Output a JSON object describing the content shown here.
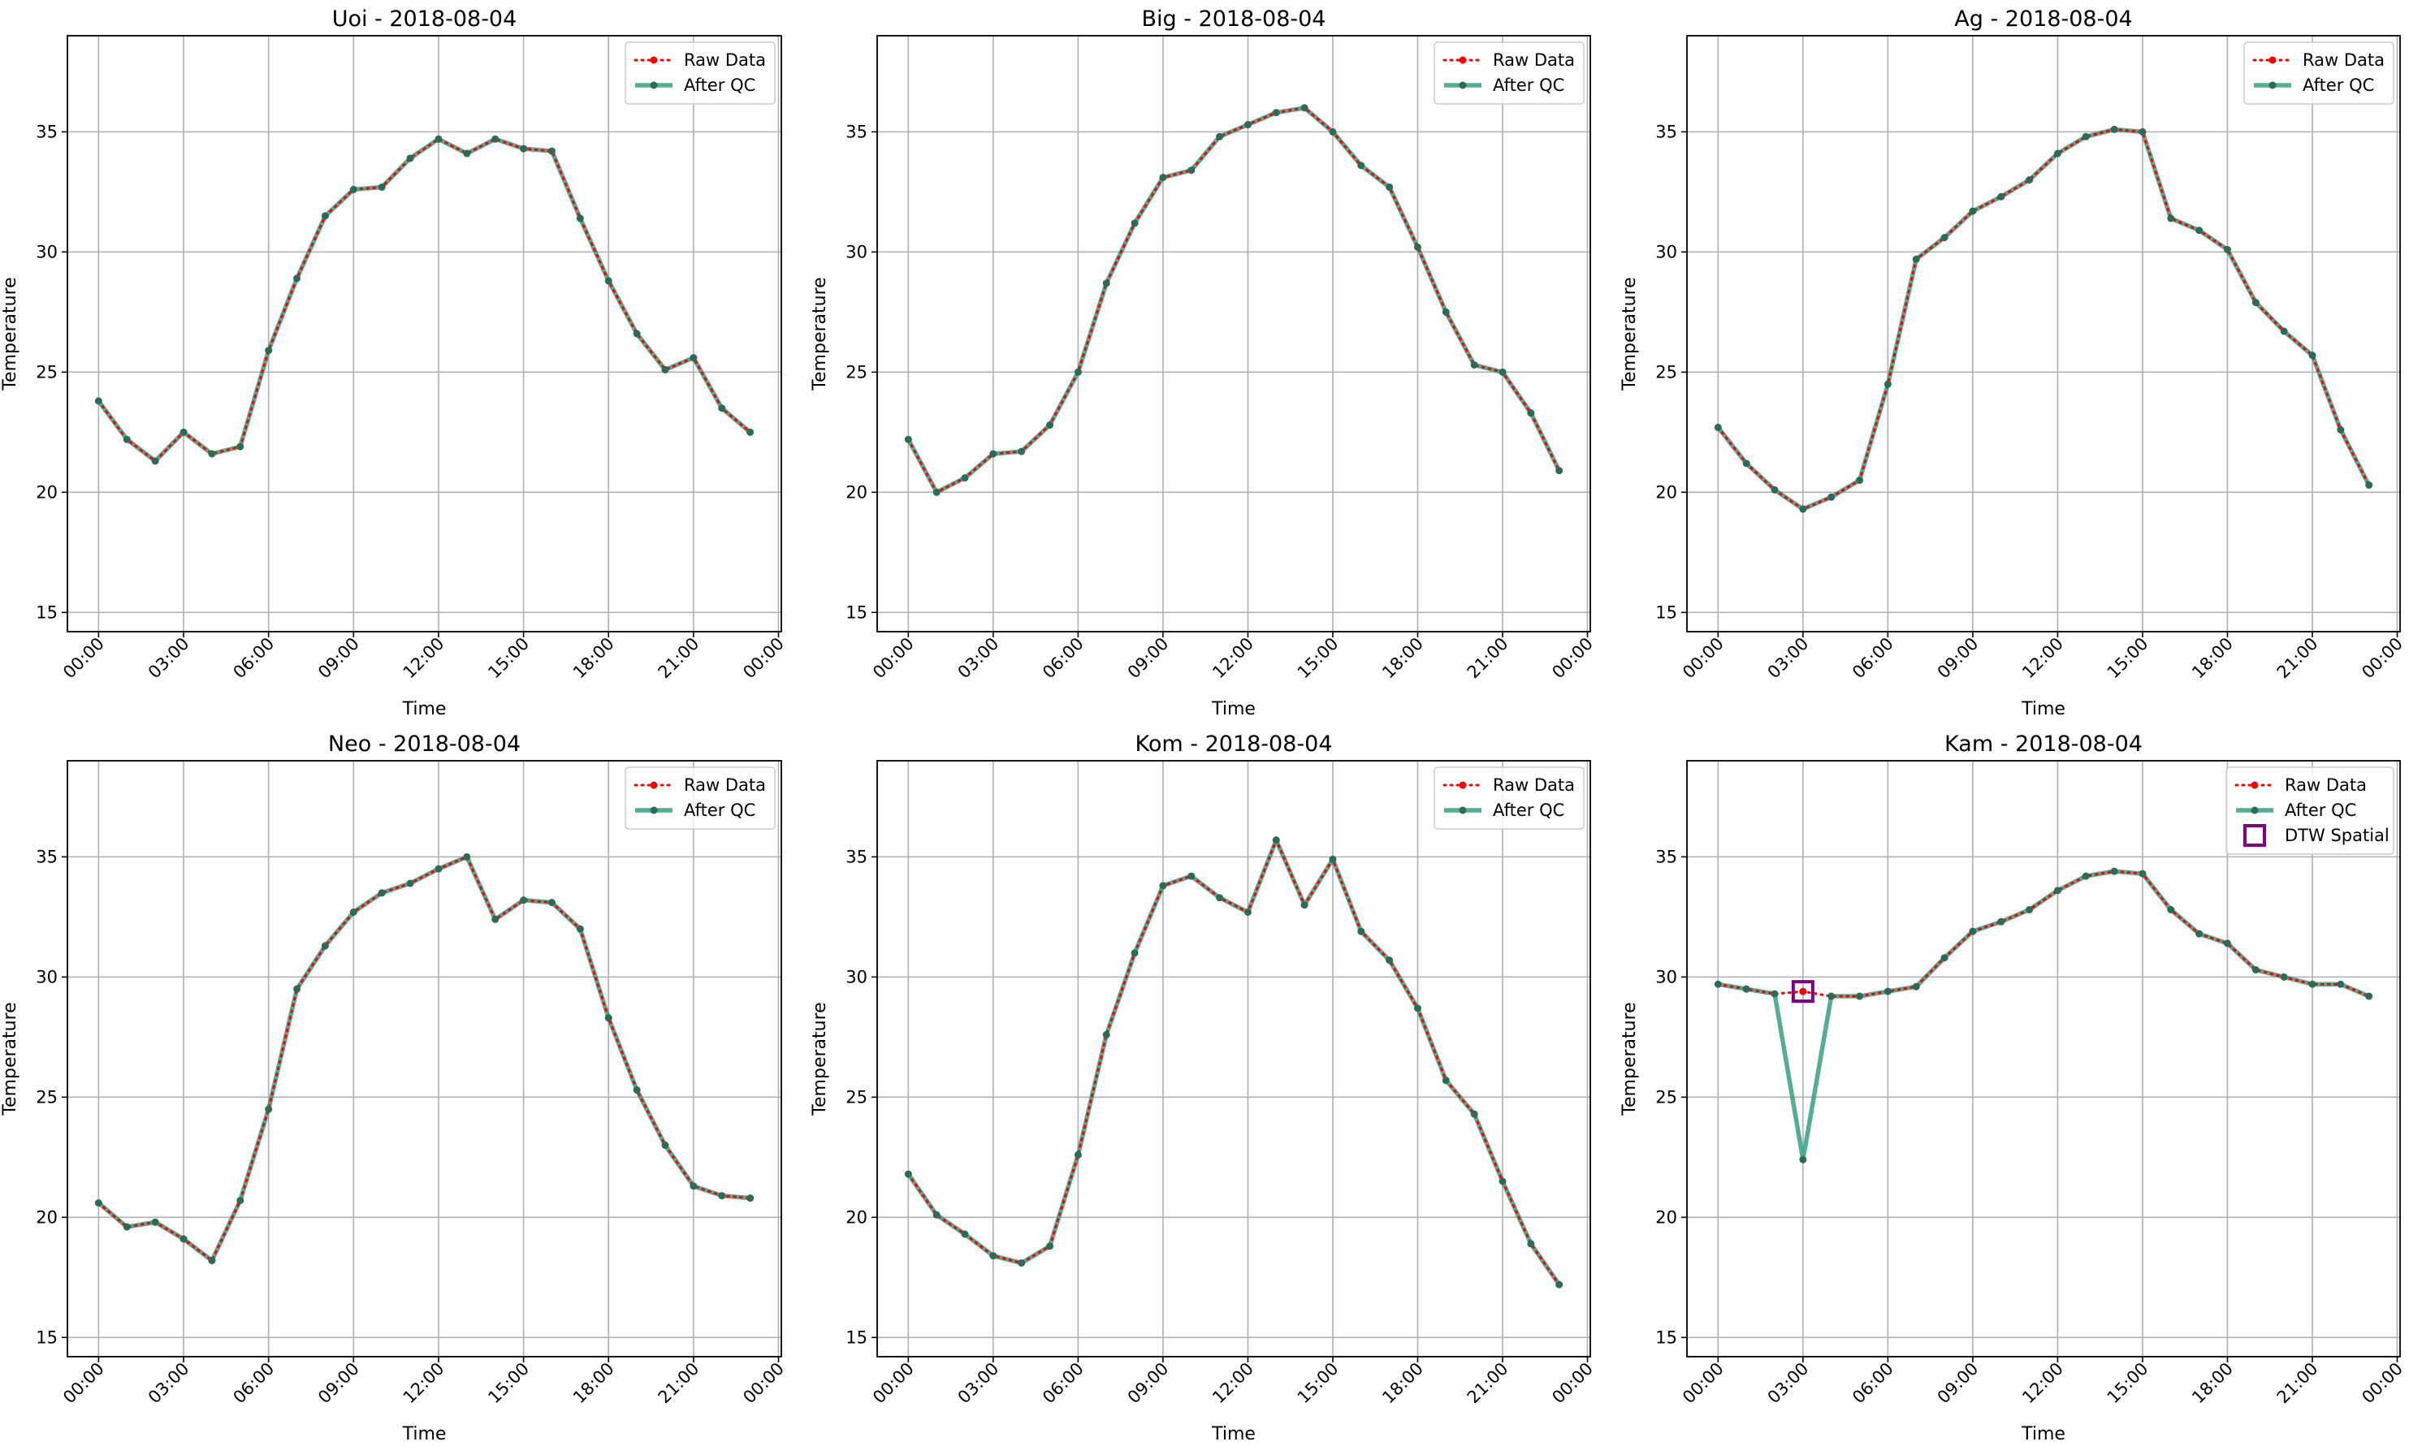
{
  "figure": {
    "background": "#ffffff",
    "colors": {
      "raw": "#ff0000",
      "after_qc": "#2e9c7f",
      "marker": "#2d6b56",
      "dtw": "#800080",
      "grid": "#b0b0b0"
    }
  },
  "chart_data": [
    {
      "type": "line",
      "title": "Uoi - 2018-08-04",
      "xlabel": "Time",
      "ylabel": "Temperature",
      "ylim": [
        14.2,
        39
      ],
      "yticks": [
        15,
        20,
        25,
        30,
        35
      ],
      "xlim": [
        -1.1,
        24.1
      ],
      "xticks": [
        0,
        3,
        6,
        9,
        12,
        15,
        18,
        21,
        24
      ],
      "xticklabels": [
        "00:00",
        "03:00",
        "06:00",
        "09:00",
        "12:00",
        "15:00",
        "18:00",
        "21:00",
        "00:00"
      ],
      "grid": true,
      "legend_position": "top-right",
      "legend": [
        "Raw Data",
        "After QC"
      ],
      "x": [
        0,
        1,
        2,
        3,
        4,
        5,
        6,
        7,
        8,
        9,
        10,
        11,
        12,
        13,
        14,
        15,
        16,
        17,
        18,
        19,
        20,
        21,
        22,
        23
      ],
      "series": [
        {
          "name": "Raw Data",
          "values": [
            23.8,
            22.2,
            21.3,
            22.5,
            21.6,
            21.9,
            25.9,
            28.9,
            31.5,
            32.6,
            32.7,
            33.9,
            34.7,
            34.1,
            34.7,
            34.3,
            34.2,
            31.4,
            28.8,
            26.6,
            25.1,
            25.6,
            23.5,
            22.5
          ]
        },
        {
          "name": "After QC",
          "values": [
            23.8,
            22.2,
            21.3,
            22.5,
            21.6,
            21.9,
            25.9,
            28.9,
            31.5,
            32.6,
            32.7,
            33.9,
            34.7,
            34.1,
            34.7,
            34.3,
            34.2,
            31.4,
            28.8,
            26.6,
            25.1,
            25.6,
            23.5,
            22.5
          ]
        }
      ]
    },
    {
      "type": "line",
      "title": "Big - 2018-08-04",
      "xlabel": "Time",
      "ylabel": "Temperature",
      "ylim": [
        14.2,
        39
      ],
      "yticks": [
        15,
        20,
        25,
        30,
        35
      ],
      "xlim": [
        -1.1,
        24.1
      ],
      "xticks": [
        0,
        3,
        6,
        9,
        12,
        15,
        18,
        21,
        24
      ],
      "xticklabels": [
        "00:00",
        "03:00",
        "06:00",
        "09:00",
        "12:00",
        "15:00",
        "18:00",
        "21:00",
        "00:00"
      ],
      "grid": true,
      "legend_position": "top-right",
      "legend": [
        "Raw Data",
        "After QC"
      ],
      "x": [
        0,
        1,
        2,
        3,
        4,
        5,
        6,
        7,
        8,
        9,
        10,
        11,
        12,
        13,
        14,
        15,
        16,
        17,
        18,
        19,
        20,
        21,
        22,
        23
      ],
      "series": [
        {
          "name": "Raw Data",
          "values": [
            22.2,
            20.0,
            20.6,
            21.6,
            21.7,
            22.8,
            25.0,
            28.7,
            31.2,
            33.1,
            33.4,
            34.8,
            35.3,
            35.8,
            36.0,
            35.0,
            33.6,
            32.7,
            30.2,
            27.5,
            25.3,
            25.0,
            23.3,
            20.9
          ]
        },
        {
          "name": "After QC",
          "values": [
            22.2,
            20.0,
            20.6,
            21.6,
            21.7,
            22.8,
            25.0,
            28.7,
            31.2,
            33.1,
            33.4,
            34.8,
            35.3,
            35.8,
            36.0,
            35.0,
            33.6,
            32.7,
            30.2,
            27.5,
            25.3,
            25.0,
            23.3,
            20.9
          ]
        }
      ]
    },
    {
      "type": "line",
      "title": "Ag - 2018-08-04",
      "xlabel": "Time",
      "ylabel": "Temperature",
      "ylim": [
        14.2,
        39
      ],
      "yticks": [
        15,
        20,
        25,
        30,
        35
      ],
      "xlim": [
        -1.1,
        24.1
      ],
      "xticks": [
        0,
        3,
        6,
        9,
        12,
        15,
        18,
        21,
        24
      ],
      "xticklabels": [
        "00:00",
        "03:00",
        "06:00",
        "09:00",
        "12:00",
        "15:00",
        "18:00",
        "21:00",
        "00:00"
      ],
      "grid": true,
      "legend_position": "top-right",
      "legend": [
        "Raw Data",
        "After QC"
      ],
      "x": [
        0,
        1,
        2,
        3,
        4,
        5,
        6,
        7,
        8,
        9,
        10,
        11,
        12,
        13,
        14,
        15,
        16,
        17,
        18,
        19,
        20,
        21,
        22,
        23
      ],
      "series": [
        {
          "name": "Raw Data",
          "values": [
            22.7,
            21.2,
            20.1,
            19.3,
            19.8,
            20.5,
            24.5,
            29.7,
            30.6,
            31.7,
            32.3,
            33.0,
            34.1,
            34.8,
            35.1,
            35.0,
            31.4,
            30.9,
            30.1,
            27.9,
            26.7,
            25.7,
            22.6,
            20.3
          ]
        },
        {
          "name": "After QC",
          "values": [
            22.7,
            21.2,
            20.1,
            19.3,
            19.8,
            20.5,
            24.5,
            29.7,
            30.6,
            31.7,
            32.3,
            33.0,
            34.1,
            34.8,
            35.1,
            35.0,
            31.4,
            30.9,
            30.1,
            27.9,
            26.7,
            25.7,
            22.6,
            20.3
          ]
        }
      ]
    },
    {
      "type": "line",
      "title": "Neo - 2018-08-04",
      "xlabel": "Time",
      "ylabel": "Temperature",
      "ylim": [
        14.2,
        39
      ],
      "yticks": [
        15,
        20,
        25,
        30,
        35
      ],
      "xlim": [
        -1.1,
        24.1
      ],
      "xticks": [
        0,
        3,
        6,
        9,
        12,
        15,
        18,
        21,
        24
      ],
      "xticklabels": [
        "00:00",
        "03:00",
        "06:00",
        "09:00",
        "12:00",
        "15:00",
        "18:00",
        "21:00",
        "00:00"
      ],
      "grid": true,
      "legend_position": "top-right",
      "legend": [
        "Raw Data",
        "After QC"
      ],
      "x": [
        0,
        1,
        2,
        3,
        4,
        5,
        6,
        7,
        8,
        9,
        10,
        11,
        12,
        13,
        14,
        15,
        16,
        17,
        18,
        19,
        20,
        21,
        22,
        23
      ],
      "series": [
        {
          "name": "Raw Data",
          "values": [
            20.6,
            19.6,
            19.8,
            19.1,
            18.2,
            20.7,
            24.5,
            29.5,
            31.3,
            32.7,
            33.5,
            33.9,
            34.5,
            35.0,
            32.4,
            33.2,
            33.1,
            32.0,
            28.3,
            25.3,
            23.0,
            21.3,
            20.9,
            20.8
          ]
        },
        {
          "name": "After QC",
          "values": [
            20.6,
            19.6,
            19.8,
            19.1,
            18.2,
            20.7,
            24.5,
            29.5,
            31.3,
            32.7,
            33.5,
            33.9,
            34.5,
            35.0,
            32.4,
            33.2,
            33.1,
            32.0,
            28.3,
            25.3,
            23.0,
            21.3,
            20.9,
            20.8
          ]
        }
      ]
    },
    {
      "type": "line",
      "title": "Kom - 2018-08-04",
      "xlabel": "Time",
      "ylabel": "Temperature",
      "ylim": [
        14.2,
        39
      ],
      "yticks": [
        15,
        20,
        25,
        30,
        35
      ],
      "xlim": [
        -1.1,
        24.1
      ],
      "xticks": [
        0,
        3,
        6,
        9,
        12,
        15,
        18,
        21,
        24
      ],
      "xticklabels": [
        "00:00",
        "03:00",
        "06:00",
        "09:00",
        "12:00",
        "15:00",
        "18:00",
        "21:00",
        "00:00"
      ],
      "grid": true,
      "legend_position": "top-right",
      "legend": [
        "Raw Data",
        "After QC"
      ],
      "x": [
        0,
        1,
        2,
        3,
        4,
        5,
        6,
        7,
        8,
        9,
        10,
        11,
        12,
        13,
        14,
        15,
        16,
        17,
        18,
        19,
        20,
        21,
        22,
        23
      ],
      "series": [
        {
          "name": "Raw Data",
          "values": [
            21.8,
            20.1,
            19.3,
            18.4,
            18.1,
            18.8,
            22.6,
            27.6,
            31.0,
            33.8,
            34.2,
            33.3,
            32.7,
            35.7,
            33.0,
            34.9,
            31.9,
            30.7,
            28.7,
            25.7,
            24.3,
            21.5,
            18.9,
            17.2
          ]
        },
        {
          "name": "After QC",
          "values": [
            21.8,
            20.1,
            19.3,
            18.4,
            18.1,
            18.8,
            22.6,
            27.6,
            31.0,
            33.8,
            34.2,
            33.3,
            32.7,
            35.7,
            33.0,
            34.9,
            31.9,
            30.7,
            28.7,
            25.7,
            24.3,
            21.5,
            18.9,
            17.2
          ]
        }
      ]
    },
    {
      "type": "line",
      "title": "Kam - 2018-08-04",
      "xlabel": "Time",
      "ylabel": "Temperature",
      "ylim": [
        14.2,
        39
      ],
      "yticks": [
        15,
        20,
        25,
        30,
        35
      ],
      "xlim": [
        -1.1,
        24.1
      ],
      "xticks": [
        0,
        3,
        6,
        9,
        12,
        15,
        18,
        21,
        24
      ],
      "xticklabels": [
        "00:00",
        "03:00",
        "06:00",
        "09:00",
        "12:00",
        "15:00",
        "18:00",
        "21:00",
        "00:00"
      ],
      "grid": true,
      "legend_position": "top-right",
      "legend": [
        "Raw Data",
        "After QC",
        "DTW Spatial"
      ],
      "x": [
        0,
        1,
        2,
        3,
        4,
        5,
        6,
        7,
        8,
        9,
        10,
        11,
        12,
        13,
        14,
        15,
        16,
        17,
        18,
        19,
        20,
        21,
        22,
        23
      ],
      "series": [
        {
          "name": "Raw Data",
          "values": [
            29.7,
            29.5,
            29.3,
            29.4,
            29.2,
            29.2,
            29.4,
            29.6,
            30.8,
            31.9,
            32.3,
            32.8,
            33.6,
            34.2,
            34.4,
            34.3,
            32.8,
            31.8,
            31.4,
            30.3,
            30.0,
            29.7,
            29.7,
            29.2
          ]
        },
        {
          "name": "After QC",
          "values": [
            29.7,
            29.5,
            29.3,
            22.4,
            29.2,
            29.2,
            29.4,
            29.6,
            30.8,
            31.9,
            32.3,
            32.8,
            33.6,
            34.2,
            34.4,
            34.3,
            32.8,
            31.8,
            31.4,
            30.3,
            30.0,
            29.7,
            29.7,
            29.2
          ]
        }
      ],
      "dtw_spatial": [
        {
          "x": 3,
          "y": 29.4
        }
      ]
    }
  ]
}
